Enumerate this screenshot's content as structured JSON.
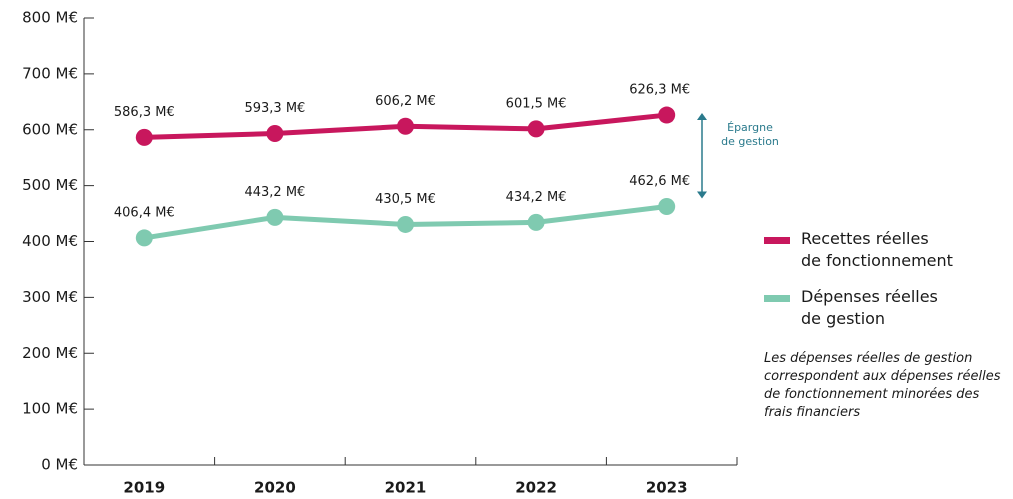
{
  "chart_data": {
    "type": "line",
    "categories": [
      "2019",
      "2020",
      "2021",
      "2022",
      "2023"
    ],
    "series": [
      {
        "name": "Recettes réelles\nde fonctionnement",
        "color": "#c8175d",
        "values": [
          586.3,
          593.3,
          606.2,
          601.5,
          626.3
        ],
        "value_labels": [
          "586,3 M€",
          "593,3 M€",
          "606,2 M€",
          "601,5 M€",
          "626,3 M€"
        ]
      },
      {
        "name": "Dépenses réelles\nde gestion",
        "color": "#7fcab0",
        "values": [
          406.4,
          443.2,
          430.5,
          434.2,
          462.6
        ],
        "value_labels": [
          "406,4 M€",
          "443,2 M€",
          "430,5 M€",
          "434,2 M€",
          "462,6 M€"
        ]
      }
    ],
    "ylim": [
      0,
      800
    ],
    "yticks": [
      {
        "value": 0,
        "label": "0 M€"
      },
      {
        "value": 100,
        "label": "100 M€"
      },
      {
        "value": 200,
        "label": "200 M€"
      },
      {
        "value": 300,
        "label": "300 M€"
      },
      {
        "value": 400,
        "label": "400 M€"
      },
      {
        "value": 500,
        "label": "500 M€"
      },
      {
        "value": 600,
        "label": "600 M€"
      },
      {
        "value": 700,
        "label": "700 M€"
      },
      {
        "value": 800,
        "label": "800 M€"
      }
    ],
    "annotation": "Épargne\nde gestion",
    "note": "Les dépenses réelles de gestion\ncorrespondent aux dépenses réelles\nde fonctionnement minorées des\nfrais financiers",
    "legend": "right"
  }
}
